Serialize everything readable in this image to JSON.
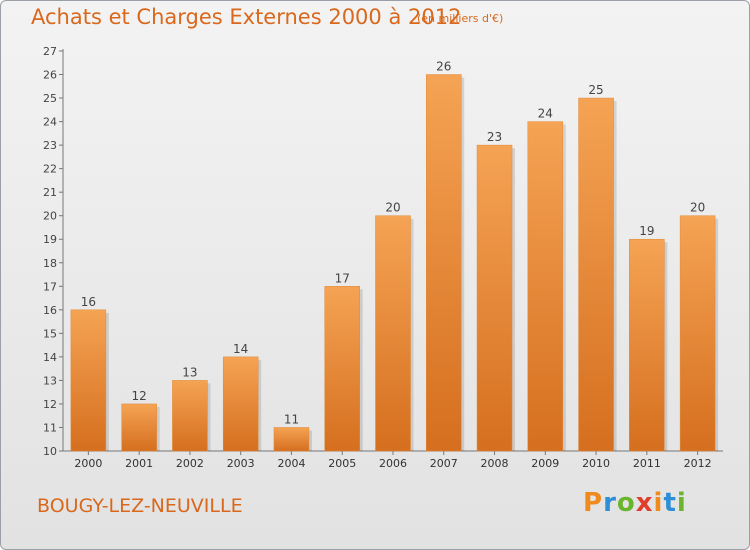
{
  "title": "Achats et Charges Externes 2000 à 2012",
  "subtitle": "(en milliers d'€)",
  "location": "BOUGY-LEZ-NEUVILLE",
  "logo_text": "Proxiti",
  "colors": {
    "title": "#d9681c",
    "bar_top": "#f5a354",
    "bar_bottom": "#d56f1f",
    "logo": [
      "#f08a1c",
      "#2e8fd6",
      "#6ab42e",
      "#e23c2a",
      "#f08a1c",
      "#2e8fd6",
      "#6ab42e"
    ]
  },
  "chart_data": {
    "type": "bar",
    "title": "Achats et Charges Externes 2000 à 2012",
    "subtitle": "(en milliers d'€)",
    "xlabel": "",
    "ylabel": "",
    "ylim": [
      10,
      27
    ],
    "yticks": [
      10,
      11,
      12,
      13,
      14,
      15,
      16,
      17,
      18,
      19,
      20,
      21,
      22,
      23,
      24,
      25,
      26,
      27
    ],
    "grid": false,
    "categories": [
      "2000",
      "2001",
      "2002",
      "2003",
      "2004",
      "2005",
      "2006",
      "2007",
      "2008",
      "2009",
      "2010",
      "2011",
      "2012"
    ],
    "values": [
      16,
      12,
      13,
      14,
      11,
      17,
      20,
      26,
      23,
      24,
      25,
      19,
      20
    ]
  }
}
